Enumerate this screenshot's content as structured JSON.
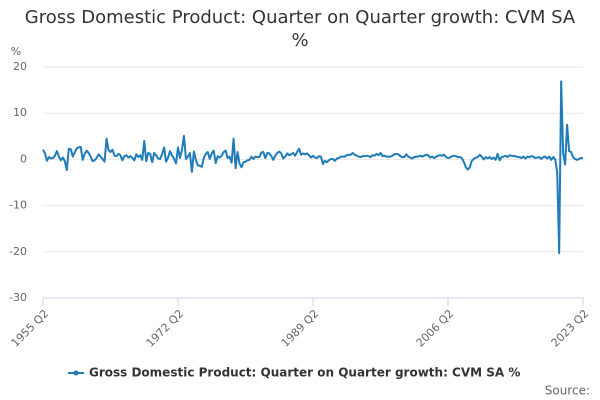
{
  "chart_data": {
    "type": "line",
    "title": "Gross Domestic Product: Quarter on Quarter growth: CVM SA %",
    "y_label": "%",
    "source": "Source:",
    "categories": [
      "1955 Q2",
      null,
      null,
      null,
      null,
      null,
      null,
      null,
      null,
      null,
      null,
      null,
      null,
      null,
      null,
      null,
      null,
      null,
      null,
      null,
      null,
      null,
      null,
      null,
      null,
      null,
      null,
      null,
      null,
      null,
      null,
      null,
      null,
      null,
      null,
      null,
      null,
      null,
      null,
      null,
      null,
      null,
      null,
      null,
      null,
      null,
      null,
      null,
      null,
      null,
      null,
      null,
      null,
      null,
      null,
      null,
      null,
      null,
      null,
      null,
      null,
      null,
      null,
      null,
      null,
      null,
      null,
      null,
      "1972 Q2",
      null,
      null,
      null,
      null,
      null,
      null,
      null,
      null,
      null,
      null,
      null,
      null,
      null,
      null,
      null,
      null,
      null,
      null,
      null,
      null,
      null,
      null,
      null,
      null,
      null,
      null,
      null,
      null,
      null,
      null,
      null,
      null,
      null,
      null,
      null,
      null,
      null,
      null,
      null,
      null,
      null,
      null,
      null,
      null,
      null,
      null,
      null,
      null,
      null,
      null,
      null,
      null,
      null,
      null,
      null,
      null,
      null,
      null,
      null,
      null,
      null,
      null,
      null,
      null,
      null,
      null,
      null,
      "1989 Q2",
      null,
      null,
      null,
      null,
      null,
      null,
      null,
      null,
      null,
      null,
      null,
      null,
      null,
      null,
      null,
      null,
      null,
      null,
      null,
      null,
      null,
      null,
      null,
      null,
      null,
      null,
      null,
      null,
      null,
      null,
      null,
      null,
      null,
      null,
      null,
      null,
      null,
      null,
      null,
      null,
      null,
      null,
      null,
      null,
      null,
      null,
      null,
      null,
      null,
      null,
      null,
      null,
      null,
      null,
      null,
      null,
      null,
      null,
      null,
      null,
      null,
      null,
      null,
      null,
      null,
      null,
      null,
      "2006 Q2",
      null,
      null,
      null,
      null,
      null,
      null,
      null,
      null,
      null,
      null,
      null,
      null,
      null,
      null,
      null,
      null,
      null,
      null,
      null,
      null,
      null,
      null,
      null,
      null,
      null,
      null,
      null,
      null,
      null,
      null,
      null,
      null,
      null,
      null,
      null,
      null,
      null,
      null,
      null,
      null,
      null,
      null,
      null,
      null,
      null,
      null,
      null,
      null,
      null,
      null,
      null,
      null,
      null,
      null,
      null,
      null,
      null,
      null,
      null,
      null,
      null,
      null,
      null,
      null,
      null,
      null,
      null,
      "2023 Q2"
    ],
    "series": [
      {
        "name": "Gross Domestic Product: Quarter on Quarter growth: CVM SA %",
        "color": "#1f7cb8",
        "values": [
          2.1,
          1.3,
          -0.3,
          0.5,
          0.2,
          0.3,
          0.8,
          1.8,
          0.6,
          -0.2,
          0.4,
          -0.4,
          -2.3,
          2.3,
          2.2,
          0.6,
          1.5,
          2.4,
          2.6,
          2.7,
          -0.1,
          1.2,
          1.9,
          1.4,
          0.6,
          -0.4,
          -0.2,
          0.3,
          1.1,
          0.6,
          0.1,
          -0.5,
          4.5,
          2.0,
          1.6,
          2.1,
          0.8,
          0.7,
          1.2,
          0.9,
          -0.2,
          0.7,
          0.9,
          0.4,
          0.7,
          0.3,
          -0.2,
          1.1,
          0.5,
          0.9,
          -0.1,
          4.0,
          -0.4,
          1.4,
          1.2,
          -0.6,
          1.4,
          0.9,
          0.2,
          0.1,
          1.2,
          2.6,
          -0.5,
          0.4,
          1.8,
          0.8,
          0.2,
          -0.9,
          2.6,
          0.3,
          2.1,
          5.1,
          0.1,
          0.6,
          1.4,
          -2.7,
          1.7,
          -0.1,
          -1.3,
          -1.4,
          -1.6,
          0.3,
          1.2,
          1.6,
          0.1,
          1.3,
          1.9,
          -0.8,
          0.7,
          0.4,
          0.8,
          1.6,
          1.9,
          0.3,
          0.6,
          -0.7,
          4.5,
          -1.9,
          1.6,
          -0.9,
          -1.7,
          -0.6,
          -0.5,
          -0.2,
          -0.1,
          0.6,
          0.1,
          0.6,
          0.5,
          0.5,
          1.5,
          1.6,
          0.3,
          1.4,
          1.3,
          0.7,
          -0.1,
          0.8,
          1.4,
          1.7,
          1.3,
          0.2,
          0.6,
          1.3,
          0.9,
          1.1,
          1.4,
          0.8,
          1.6,
          2.3,
          1.0,
          1.3,
          1.1,
          1.3,
          0.9,
          0.4,
          0.8,
          0.4,
          0.3,
          0.7,
          0.6,
          -1.0,
          -0.3,
          -0.6,
          -0.2,
          0.1,
          0.1,
          -0.3,
          0.2,
          0.3,
          0.6,
          0.6,
          0.6,
          0.9,
          1.0,
          1.0,
          1.4,
          1.0,
          0.8,
          0.6,
          0.5,
          0.7,
          0.7,
          0.8,
          0.7,
          0.5,
          0.9,
          0.8,
          1.2,
          0.9,
          1.4,
          0.7,
          0.8,
          0.6,
          0.6,
          0.6,
          0.8,
          1.1,
          1.2,
          1.1,
          0.7,
          0.5,
          0.5,
          1.1,
          0.6,
          0.4,
          0.2,
          0.5,
          0.6,
          0.6,
          0.8,
          0.6,
          0.8,
          1.0,
          0.9,
          0.4,
          0.6,
          0.3,
          0.6,
          0.8,
          0.9,
          0.8,
          1.0,
          0.5,
          0.3,
          0.4,
          0.7,
          0.8,
          0.7,
          0.5,
          0.5,
          0.3,
          -0.6,
          -1.7,
          -2.2,
          -1.7,
          -0.3,
          0.1,
          0.4,
          0.5,
          1.0,
          0.6,
          0.0,
          0.5,
          0.2,
          0.5,
          0.1,
          0.4,
          -0.1,
          1.2,
          -0.2,
          0.5,
          0.6,
          0.8,
          0.5,
          0.9,
          0.8,
          0.7,
          0.7,
          0.5,
          0.5,
          0.3,
          0.6,
          0.2,
          0.6,
          0.5,
          0.7,
          0.6,
          0.3,
          0.4,
          0.5,
          0.1,
          0.5,
          0.6,
          0.2,
          0.6,
          -0.1,
          0.5,
          0.0,
          -2.7,
          -20.3,
          16.9,
          1.3,
          -1.1,
          7.5,
          1.8,
          1.6,
          0.5,
          0.1,
          -0.1,
          0.1,
          0.3,
          0.2
        ]
      }
    ],
    "ylim": [
      -30,
      20
    ],
    "yticks": [
      -30,
      -20,
      -10,
      0,
      10,
      20
    ],
    "grid": true,
    "legend": "bottom"
  }
}
